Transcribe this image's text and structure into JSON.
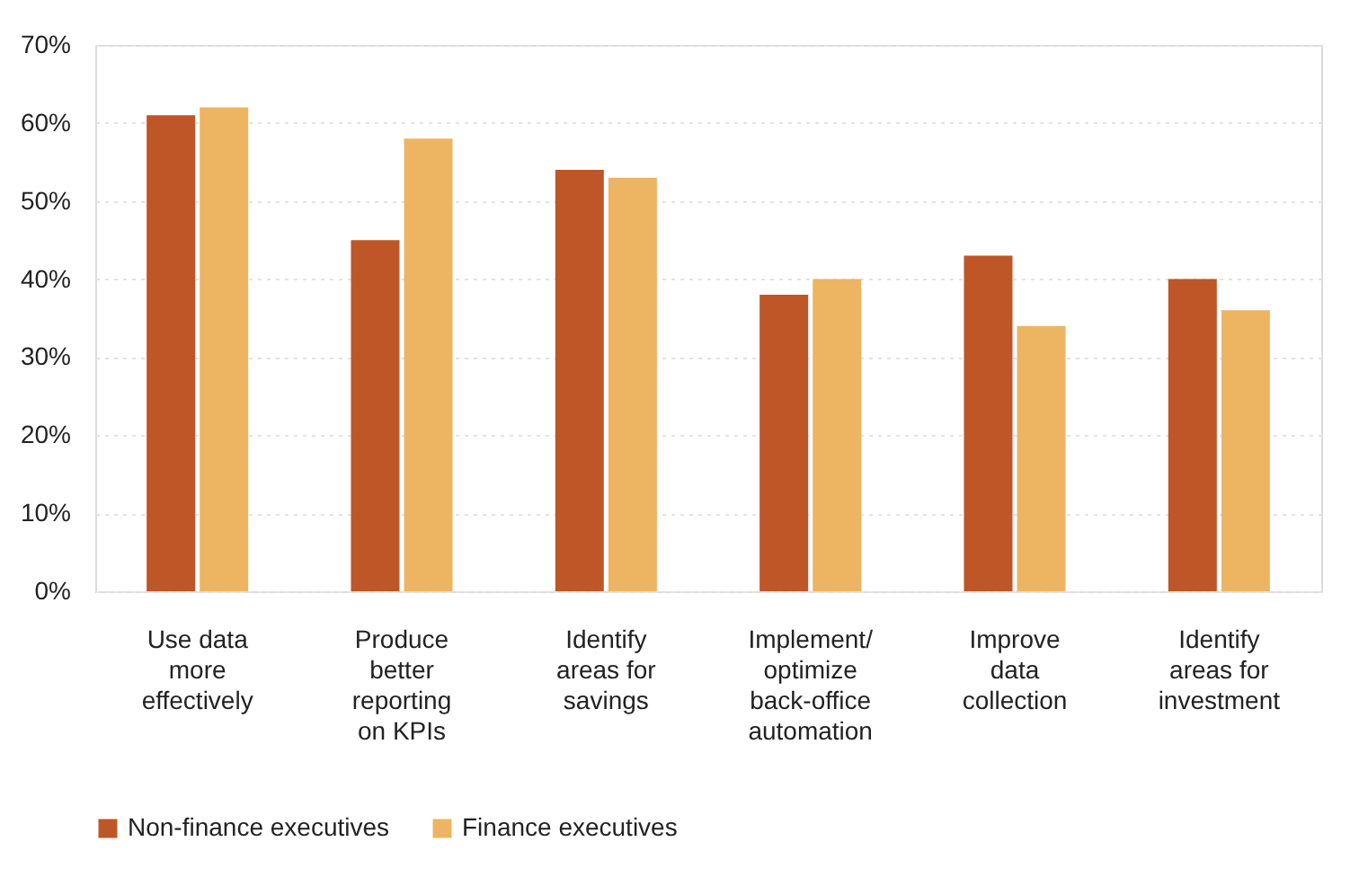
{
  "chart_data": {
    "type": "bar",
    "categories": [
      "Use data\nmore\neffectively",
      "Produce\nbetter\nreporting\non KPIs",
      "Identify\nareas for\nsavings",
      "Implement/\noptimize\nback-office\nautomation",
      "Improve\ndata\ncollection",
      "Identify\nareas for\ninvestment"
    ],
    "series": [
      {
        "name": "Non-finance executives",
        "color": "#be5627",
        "values": [
          61,
          45,
          54,
          38,
          43,
          40
        ]
      },
      {
        "name": "Finance executives",
        "color": "#edb562",
        "values": [
          62,
          58,
          53,
          40,
          34,
          36
        ]
      }
    ],
    "ylim": [
      0,
      70
    ],
    "yticks": [
      {
        "value": 0,
        "label": "0%"
      },
      {
        "value": 10,
        "label": "10%"
      },
      {
        "value": 20,
        "label": "20%"
      },
      {
        "value": 30,
        "label": "30%"
      },
      {
        "value": 40,
        "label": "40%"
      },
      {
        "value": 50,
        "label": "50%"
      },
      {
        "value": 60,
        "label": "60%"
      },
      {
        "value": 70,
        "label": "70%"
      }
    ],
    "grid": "y",
    "legend": "bottom"
  }
}
